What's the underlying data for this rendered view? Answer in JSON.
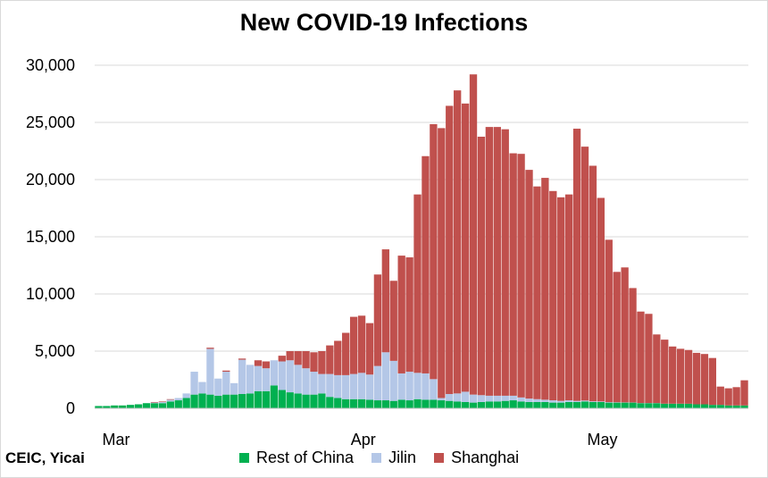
{
  "chart_data": {
    "type": "bar",
    "stacked": true,
    "title": "New COVID-19 Infections",
    "source": "CEIC, Yicai",
    "xlabel": "",
    "ylabel": "",
    "ylim": [
      0,
      30000
    ],
    "yticks": [
      0,
      5000,
      10000,
      15000,
      20000,
      25000,
      30000
    ],
    "ytick_labels": [
      "0",
      "5,000",
      "10,000",
      "15,000",
      "20,000",
      "25,000",
      "30,000"
    ],
    "xtick_labels": [
      {
        "label": "Mar",
        "date": "2022-03-01"
      },
      {
        "label": "Apr",
        "date": "2022-04-01"
      },
      {
        "label": "May",
        "date": "2022-05-01"
      }
    ],
    "grid": "horizontal",
    "legend": "bottom",
    "x": [
      "2022-03-01",
      "2022-03-02",
      "2022-03-03",
      "2022-03-04",
      "2022-03-05",
      "2022-03-06",
      "2022-03-07",
      "2022-03-08",
      "2022-03-09",
      "2022-03-10",
      "2022-03-11",
      "2022-03-12",
      "2022-03-13",
      "2022-03-14",
      "2022-03-15",
      "2022-03-16",
      "2022-03-17",
      "2022-03-18",
      "2022-03-19",
      "2022-03-20",
      "2022-03-21",
      "2022-03-22",
      "2022-03-23",
      "2022-03-24",
      "2022-03-25",
      "2022-03-26",
      "2022-03-27",
      "2022-03-28",
      "2022-03-29",
      "2022-03-30",
      "2022-03-31",
      "2022-04-01",
      "2022-04-02",
      "2022-04-03",
      "2022-04-04",
      "2022-04-05",
      "2022-04-06",
      "2022-04-07",
      "2022-04-08",
      "2022-04-09",
      "2022-04-10",
      "2022-04-11",
      "2022-04-12",
      "2022-04-13",
      "2022-04-14",
      "2022-04-15",
      "2022-04-16",
      "2022-04-17",
      "2022-04-18",
      "2022-04-19",
      "2022-04-20",
      "2022-04-21",
      "2022-04-22",
      "2022-04-23",
      "2022-04-24",
      "2022-04-25",
      "2022-04-26",
      "2022-04-27",
      "2022-04-28",
      "2022-04-29",
      "2022-04-30",
      "2022-05-01",
      "2022-05-02",
      "2022-05-03",
      "2022-05-04",
      "2022-05-05",
      "2022-05-06",
      "2022-05-07",
      "2022-05-08",
      "2022-05-09",
      "2022-05-10",
      "2022-05-11",
      "2022-05-12",
      "2022-05-13",
      "2022-05-14",
      "2022-05-15",
      "2022-05-16",
      "2022-05-17",
      "2022-05-18",
      "2022-05-19",
      "2022-05-20",
      "2022-05-21"
    ],
    "series": [
      {
        "name": "Rest of China",
        "color": "#00b050",
        "values": [
          200,
          200,
          250,
          250,
          300,
          350,
          450,
          450,
          450,
          600,
          700,
          900,
          1200,
          1300,
          1200,
          1100,
          1200,
          1200,
          1250,
          1300,
          1500,
          1500,
          2000,
          1600,
          1400,
          1300,
          1200,
          1200,
          1300,
          1000,
          900,
          800,
          800,
          800,
          750,
          700,
          700,
          650,
          750,
          700,
          800,
          750,
          750,
          700,
          650,
          600,
          550,
          500,
          550,
          600,
          600,
          650,
          700,
          600,
          550,
          550,
          550,
          500,
          500,
          550,
          550,
          600,
          550,
          550,
          500,
          500,
          500,
          500,
          450,
          450,
          450,
          400,
          400,
          400,
          400,
          350,
          350,
          300,
          300,
          250,
          250,
          250
        ]
      },
      {
        "name": "Jilin",
        "color": "#b4c7e7",
        "values": [
          0,
          0,
          0,
          0,
          0,
          0,
          0,
          50,
          100,
          150,
          200,
          400,
          2000,
          1000,
          4000,
          1500,
          2000,
          1000,
          3000,
          2500,
          2200,
          2000,
          2200,
          2500,
          2800,
          2500,
          2300,
          2000,
          1700,
          2000,
          2000,
          2100,
          2200,
          2300,
          2200,
          3000,
          4200,
          3500,
          2300,
          2500,
          2300,
          2300,
          1800,
          200,
          600,
          700,
          900,
          700,
          600,
          500,
          500,
          450,
          400,
          350,
          300,
          250,
          200,
          200,
          150,
          150,
          100,
          80,
          60,
          50,
          40,
          30,
          20,
          15,
          10,
          10,
          10,
          5,
          5,
          5,
          0,
          0,
          0,
          0,
          0,
          0,
          0,
          0
        ]
      },
      {
        "name": "Shanghai",
        "color": "#c0504d",
        "values": [
          0,
          0,
          0,
          0,
          0,
          0,
          0,
          50,
          50,
          50,
          0,
          0,
          0,
          0,
          100,
          0,
          100,
          0,
          100,
          0,
          500,
          600,
          0,
          500,
          800,
          1200,
          1500,
          1700,
          2000,
          2500,
          3000,
          3700,
          5000,
          5000,
          4500,
          8000,
          9000,
          7000,
          10300,
          10000,
          15600,
          19000,
          22300,
          23600,
          25200,
          26500,
          25200,
          28000,
          22600,
          23500,
          23500,
          23300,
          21200,
          21300,
          20000,
          18600,
          19400,
          18300,
          17800,
          18000,
          23800,
          22200,
          20600,
          17800,
          14200,
          11400,
          11800,
          10000,
          8000,
          7800,
          6000,
          5600,
          5000,
          4800,
          4700,
          4500,
          4400,
          4100,
          1600,
          1500,
          1600,
          2200
        ]
      }
    ]
  }
}
